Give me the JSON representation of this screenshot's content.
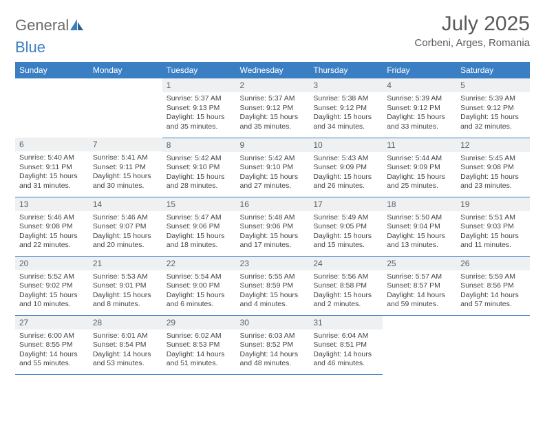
{
  "brand": {
    "part1": "General",
    "part2": "Blue"
  },
  "title": "July 2025",
  "location": "Corbeni, Arges, Romania",
  "colors": {
    "header_bg": "#3a7fc4",
    "header_fg": "#ffffff",
    "daynum_bg": "#eef0f1",
    "daynum_fg": "#57636c",
    "border": "#3a7fc4",
    "text": "#444444"
  },
  "typography": {
    "title_fontsize": 30,
    "subtitle_fontsize": 15,
    "header_fontsize": 12,
    "daynum_fontsize": 12,
    "body_fontsize": 10.5
  },
  "weekdays": [
    "Sunday",
    "Monday",
    "Tuesday",
    "Wednesday",
    "Thursday",
    "Friday",
    "Saturday"
  ],
  "weeks": [
    [
      null,
      null,
      {
        "n": "1",
        "sr": "5:37 AM",
        "ss": "9:13 PM",
        "dl": "15 hours and 35 minutes."
      },
      {
        "n": "2",
        "sr": "5:37 AM",
        "ss": "9:12 PM",
        "dl": "15 hours and 35 minutes."
      },
      {
        "n": "3",
        "sr": "5:38 AM",
        "ss": "9:12 PM",
        "dl": "15 hours and 34 minutes."
      },
      {
        "n": "4",
        "sr": "5:39 AM",
        "ss": "9:12 PM",
        "dl": "15 hours and 33 minutes."
      },
      {
        "n": "5",
        "sr": "5:39 AM",
        "ss": "9:12 PM",
        "dl": "15 hours and 32 minutes."
      }
    ],
    [
      {
        "n": "6",
        "sr": "5:40 AM",
        "ss": "9:11 PM",
        "dl": "15 hours and 31 minutes."
      },
      {
        "n": "7",
        "sr": "5:41 AM",
        "ss": "9:11 PM",
        "dl": "15 hours and 30 minutes."
      },
      {
        "n": "8",
        "sr": "5:42 AM",
        "ss": "9:10 PM",
        "dl": "15 hours and 28 minutes."
      },
      {
        "n": "9",
        "sr": "5:42 AM",
        "ss": "9:10 PM",
        "dl": "15 hours and 27 minutes."
      },
      {
        "n": "10",
        "sr": "5:43 AM",
        "ss": "9:09 PM",
        "dl": "15 hours and 26 minutes."
      },
      {
        "n": "11",
        "sr": "5:44 AM",
        "ss": "9:09 PM",
        "dl": "15 hours and 25 minutes."
      },
      {
        "n": "12",
        "sr": "5:45 AM",
        "ss": "9:08 PM",
        "dl": "15 hours and 23 minutes."
      }
    ],
    [
      {
        "n": "13",
        "sr": "5:46 AM",
        "ss": "9:08 PM",
        "dl": "15 hours and 22 minutes."
      },
      {
        "n": "14",
        "sr": "5:46 AM",
        "ss": "9:07 PM",
        "dl": "15 hours and 20 minutes."
      },
      {
        "n": "15",
        "sr": "5:47 AM",
        "ss": "9:06 PM",
        "dl": "15 hours and 18 minutes."
      },
      {
        "n": "16",
        "sr": "5:48 AM",
        "ss": "9:06 PM",
        "dl": "15 hours and 17 minutes."
      },
      {
        "n": "17",
        "sr": "5:49 AM",
        "ss": "9:05 PM",
        "dl": "15 hours and 15 minutes."
      },
      {
        "n": "18",
        "sr": "5:50 AM",
        "ss": "9:04 PM",
        "dl": "15 hours and 13 minutes."
      },
      {
        "n": "19",
        "sr": "5:51 AM",
        "ss": "9:03 PM",
        "dl": "15 hours and 11 minutes."
      }
    ],
    [
      {
        "n": "20",
        "sr": "5:52 AM",
        "ss": "9:02 PM",
        "dl": "15 hours and 10 minutes."
      },
      {
        "n": "21",
        "sr": "5:53 AM",
        "ss": "9:01 PM",
        "dl": "15 hours and 8 minutes."
      },
      {
        "n": "22",
        "sr": "5:54 AM",
        "ss": "9:00 PM",
        "dl": "15 hours and 6 minutes."
      },
      {
        "n": "23",
        "sr": "5:55 AM",
        "ss": "8:59 PM",
        "dl": "15 hours and 4 minutes."
      },
      {
        "n": "24",
        "sr": "5:56 AM",
        "ss": "8:58 PM",
        "dl": "15 hours and 2 minutes."
      },
      {
        "n": "25",
        "sr": "5:57 AM",
        "ss": "8:57 PM",
        "dl": "14 hours and 59 minutes."
      },
      {
        "n": "26",
        "sr": "5:59 AM",
        "ss": "8:56 PM",
        "dl": "14 hours and 57 minutes."
      }
    ],
    [
      {
        "n": "27",
        "sr": "6:00 AM",
        "ss": "8:55 PM",
        "dl": "14 hours and 55 minutes."
      },
      {
        "n": "28",
        "sr": "6:01 AM",
        "ss": "8:54 PM",
        "dl": "14 hours and 53 minutes."
      },
      {
        "n": "29",
        "sr": "6:02 AM",
        "ss": "8:53 PM",
        "dl": "14 hours and 51 minutes."
      },
      {
        "n": "30",
        "sr": "6:03 AM",
        "ss": "8:52 PM",
        "dl": "14 hours and 48 minutes."
      },
      {
        "n": "31",
        "sr": "6:04 AM",
        "ss": "8:51 PM",
        "dl": "14 hours and 46 minutes."
      },
      null,
      null
    ]
  ],
  "labels": {
    "sunrise": "Sunrise:",
    "sunset": "Sunset:",
    "daylight": "Daylight:"
  }
}
